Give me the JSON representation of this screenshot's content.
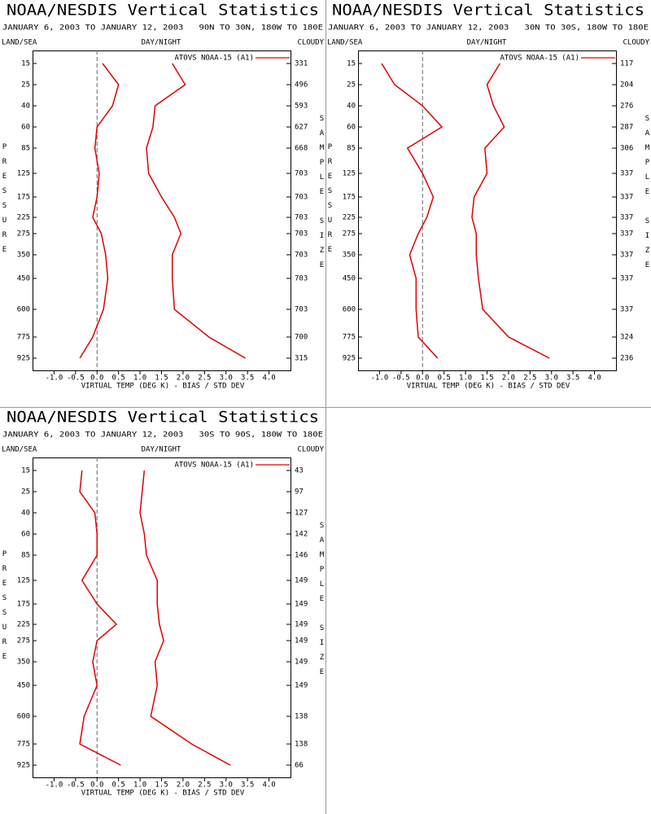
{
  "chart_data": [
    {
      "type": "line",
      "title": "NOAA/NESDIS Vertical Statistics",
      "subtitle": "JANUARY 6, 2003 TO JANUARY 12, 2003   90N TO 30N, 180W TO 180E",
      "left_header": "LAND/SEA",
      "center_header": "DAY/NIGHT",
      "right_header": "CLOUDY",
      "y_label": "PRESSURE",
      "y2_label": "SAMPLE SIZE",
      "x_label": "VIRTUAL TEMP (DEG K) - BIAS / STD DEV",
      "categories": [
        "15",
        "25",
        "40",
        "60",
        "85",
        "125",
        "175",
        "225",
        "275",
        "350",
        "450",
        "600",
        "775",
        "925"
      ],
      "sample_sizes": [
        331,
        496,
        593,
        627,
        668,
        703,
        703,
        703,
        703,
        703,
        703,
        703,
        700,
        315
      ],
      "series": [
        {
          "name": "ATOVS NOAA-15 (A1)",
          "color": "#e00000",
          "bias": [
            0.13,
            0.5,
            0.36,
            0,
            -0.05,
            0.05,
            0,
            -0.1,
            0.1,
            0.2,
            0.25,
            0.15,
            -0.1,
            -0.4
          ],
          "std_dev": [
            1.75,
            2.05,
            1.35,
            1.3,
            1.15,
            1.2,
            1.5,
            1.8,
            1.95,
            1.75,
            1.75,
            1.8,
            2.6,
            3.45
          ]
        }
      ],
      "xlim": [
        -1.5,
        4.5
      ],
      "xticks": [
        {
          "value": -1,
          "label": "-1.0"
        },
        -0.5,
        {
          "value": 0,
          "label": "0.0"
        },
        0.5,
        {
          "value": 1,
          "label": "1.0"
        },
        1.5,
        {
          "value": 2,
          "label": "2.0"
        },
        2.5,
        {
          "value": 3,
          "label": "3.0"
        },
        3.5,
        {
          "value": 4,
          "label": "4.0"
        }
      ]
    },
    {
      "type": "line",
      "title": "NOAA/NESDIS Vertical Statistics",
      "subtitle": "JANUARY 6, 2003 TO JANUARY 12, 2003   30N TO 30S, 180W TO 180E",
      "left_header": "LAND/SEA",
      "center_header": "DAY/NIGHT",
      "right_header": "CLOUDY",
      "y_label": "PRESSURE",
      "y2_label": "SAMPLE SIZE",
      "x_label": "VIRTUAL TEMP (DEG K) - BIAS / STD DEV",
      "categories": [
        "15",
        "25",
        "40",
        "60",
        "85",
        "125",
        "175",
        "225",
        "275",
        "350",
        "450",
        "600",
        "775",
        "925"
      ],
      "sample_sizes": [
        117,
        204,
        276,
        287,
        306,
        337,
        337,
        337,
        337,
        337,
        337,
        337,
        324,
        236
      ],
      "series": [
        {
          "name": "ATOVS NOAA-15 (A1)",
          "color": "#e00000",
          "bias": [
            -0.95,
            -0.65,
            0,
            0.45,
            -0.35,
            0,
            0.25,
            0.1,
            -0.1,
            -0.3,
            -0.15,
            -0.15,
            -0.1,
            0.35
          ],
          "std_dev": [
            1.8,
            1.5,
            1.65,
            1.9,
            1.45,
            1.5,
            1.2,
            1.15,
            1.25,
            1.25,
            1.3,
            1.4,
            2.0,
            2.95
          ]
        }
      ],
      "xlim": [
        -1.5,
        4.5
      ],
      "xticks": [
        {
          "value": -1,
          "label": "-1.0"
        },
        -0.5,
        {
          "value": 0,
          "label": "0.0"
        },
        0.5,
        {
          "value": 1,
          "label": "1.0"
        },
        1.5,
        {
          "value": 2,
          "label": "2.0"
        },
        2.5,
        {
          "value": 3,
          "label": "3.0"
        },
        3.5,
        {
          "value": 4,
          "label": "4.0"
        }
      ]
    },
    {
      "type": "line",
      "title": "NOAA/NESDIS Vertical Statistics",
      "subtitle": "JANUARY 6, 2003 TO JANUARY 12, 2003   30S TO 90S, 180W TO 180E",
      "left_header": "LAND/SEA",
      "center_header": "DAY/NIGHT",
      "right_header": "CLOUDY",
      "y_label": "PRESSURE",
      "y2_label": "SAMPLE SIZE",
      "x_label": "VIRTUAL TEMP (DEG K) - BIAS / STD DEV",
      "categories": [
        "15",
        "25",
        "40",
        "60",
        "85",
        "125",
        "175",
        "225",
        "275",
        "350",
        "450",
        "600",
        "775",
        "925"
      ],
      "sample_sizes": [
        43,
        97,
        127,
        142,
        146,
        149,
        149,
        149,
        149,
        149,
        149,
        138,
        138,
        66
      ],
      "series": [
        {
          "name": "ATOVS NOAA-15 (A1)",
          "color": "#e00000",
          "bias": [
            -0.35,
            -0.4,
            -0.05,
            0,
            0,
            -0.35,
            0,
            0.45,
            0,
            -0.1,
            0,
            -0.3,
            -0.4,
            0.55
          ],
          "std_dev": [
            1.1,
            1.05,
            1.0,
            1.1,
            1.15,
            1.4,
            1.4,
            1.45,
            1.55,
            1.35,
            1.4,
            1.25,
            2.2,
            3.1
          ]
        }
      ],
      "xlim": [
        -1.5,
        4.5
      ],
      "xticks": [
        {
          "value": -1,
          "label": "-1.0"
        },
        -0.5,
        {
          "value": 0,
          "label": "0.0"
        },
        0.5,
        {
          "value": 1,
          "label": "1.0"
        },
        1.5,
        {
          "value": 2,
          "label": "2.0"
        },
        2.5,
        {
          "value": 3,
          "label": "3.0"
        },
        3.5,
        {
          "value": 4,
          "label": "4.0"
        }
      ]
    }
  ]
}
